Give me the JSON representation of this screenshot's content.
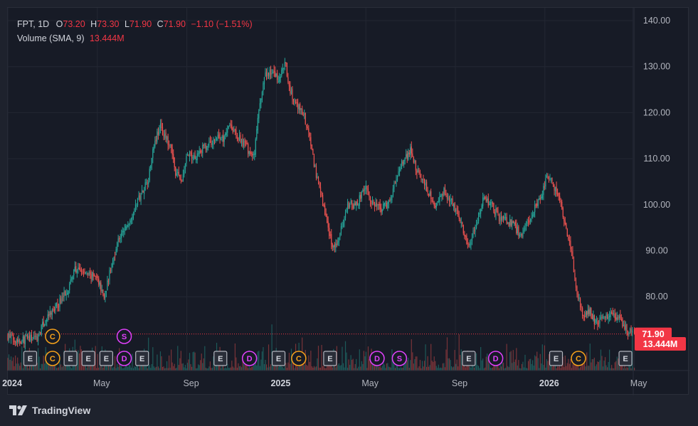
{
  "legend": {
    "symbol": "FPT",
    "interval": "1D",
    "o_label": "O",
    "o_value": "73.20",
    "h_label": "H",
    "h_value": "73.30",
    "l_label": "L",
    "l_value": "71.90",
    "c_label": "C",
    "c_value": "71.90",
    "change": "−1.10 (−1.51%)",
    "volume_label": "Volume (SMA, 9)",
    "volume_value": "13.444M"
  },
  "brand": {
    "name": "TradingView"
  },
  "colors": {
    "up": "#26a69a",
    "down": "#ef5350",
    "tag": "#f23645",
    "dividend": "#e040fb",
    "earnings_border": "#b2b5be",
    "corporate": "#f7a21b"
  },
  "chart_data": {
    "type": "candlestick",
    "y_axis": {
      "ticks": [
        "140.00",
        "130.00",
        "120.00",
        "110.00",
        "100.00",
        "90.00",
        "80.00"
      ],
      "tick_values": [
        140,
        130,
        120,
        110,
        100,
        90,
        80
      ],
      "ylim": [
        62.6,
        143
      ]
    },
    "x_axis": {
      "ticks": [
        "2024",
        "May",
        "Sep",
        "2025",
        "May",
        "Sep",
        "2026",
        "May"
      ],
      "tick_months": [
        0,
        4,
        8,
        12,
        16,
        20,
        24,
        28
      ],
      "bold": [
        true,
        false,
        false,
        true,
        false,
        false,
        true,
        false
      ],
      "xlim_months": [
        0,
        28.6
      ]
    },
    "last_price": {
      "label": "71.90",
      "value": 71.9
    },
    "last_volume": {
      "label": "13.444M"
    },
    "price_path": [
      [
        0,
        71.5
      ],
      [
        0.5,
        70.5
      ],
      [
        1.3,
        71.2
      ],
      [
        1.7,
        75
      ],
      [
        2.2,
        78
      ],
      [
        2.7,
        82
      ],
      [
        3.0,
        86
      ],
      [
        3.5,
        85
      ],
      [
        4.0,
        84
      ],
      [
        4.3,
        80
      ],
      [
        4.6,
        86
      ],
      [
        4.9,
        92
      ],
      [
        5.4,
        96
      ],
      [
        5.9,
        102
      ],
      [
        6.3,
        106
      ],
      [
        6.5,
        113
      ],
      [
        6.8,
        117
      ],
      [
        7.0,
        115
      ],
      [
        7.3,
        112
      ],
      [
        7.5,
        107
      ],
      [
        7.8,
        105
      ],
      [
        8.0,
        111
      ],
      [
        8.3,
        110
      ],
      [
        8.6,
        112
      ],
      [
        9.0,
        113
      ],
      [
        9.4,
        115
      ],
      [
        9.6,
        114
      ],
      [
        9.9,
        118
      ],
      [
        10.2,
        115
      ],
      [
        10.6,
        113
      ],
      [
        11.0,
        110
      ],
      [
        11.2,
        120
      ],
      [
        11.5,
        128
      ],
      [
        11.8,
        129
      ],
      [
        12.1,
        127
      ],
      [
        12.4,
        131
      ],
      [
        12.5,
        127
      ],
      [
        12.8,
        122
      ],
      [
        13.2,
        120
      ],
      [
        13.5,
        114
      ],
      [
        13.8,
        106
      ],
      [
        14.1,
        100
      ],
      [
        14.4,
        93
      ],
      [
        14.6,
        90
      ],
      [
        14.9,
        95
      ],
      [
        15.2,
        100
      ],
      [
        15.6,
        100
      ],
      [
        16.0,
        104
      ],
      [
        16.3,
        100
      ],
      [
        16.7,
        99
      ],
      [
        17.1,
        101
      ],
      [
        17.5,
        108
      ],
      [
        18.0,
        112
      ],
      [
        18.3,
        107
      ],
      [
        18.7,
        104
      ],
      [
        19.1,
        99
      ],
      [
        19.5,
        103
      ],
      [
        19.9,
        100
      ],
      [
        20.2,
        97
      ],
      [
        20.6,
        91
      ],
      [
        20.9,
        95
      ],
      [
        21.2,
        101
      ],
      [
        21.6,
        100
      ],
      [
        22.0,
        97
      ],
      [
        22.5,
        96
      ],
      [
        23.0,
        93
      ],
      [
        23.4,
        98
      ],
      [
        23.8,
        101
      ],
      [
        24.1,
        106
      ],
      [
        24.4,
        104
      ],
      [
        24.7,
        100
      ],
      [
        24.9,
        96
      ],
      [
        25.2,
        89
      ],
      [
        25.4,
        82
      ],
      [
        25.7,
        76
      ],
      [
        26.0,
        77
      ],
      [
        26.3,
        74
      ],
      [
        26.6,
        76
      ],
      [
        26.9,
        76
      ],
      [
        27.3,
        75
      ],
      [
        27.7,
        72.5
      ],
      [
        28.0,
        71.9
      ]
    ],
    "events_upper": [
      {
        "type": "C",
        "month": 2.0
      },
      {
        "type": "S",
        "month": 5.2
      }
    ],
    "events_lower": [
      {
        "type": "E",
        "month": 1.0
      },
      {
        "type": "C",
        "month": 2.0
      },
      {
        "type": "E",
        "month": 2.8
      },
      {
        "type": "E",
        "month": 3.6
      },
      {
        "type": "E",
        "month": 4.4
      },
      {
        "type": "D",
        "month": 5.2
      },
      {
        "type": "E",
        "month": 6.0
      },
      {
        "type": "E",
        "month": 9.5
      },
      {
        "type": "D",
        "month": 10.8
      },
      {
        "type": "E",
        "month": 12.1
      },
      {
        "type": "C",
        "month": 13.0
      },
      {
        "type": "E",
        "month": 14.4
      },
      {
        "type": "D",
        "month": 16.5
      },
      {
        "type": "S",
        "month": 17.5
      },
      {
        "type": "E",
        "month": 20.6
      },
      {
        "type": "D",
        "month": 21.8
      },
      {
        "type": "E",
        "month": 24.5
      },
      {
        "type": "C",
        "month": 25.5
      },
      {
        "type": "E",
        "month": 27.6
      }
    ]
  }
}
